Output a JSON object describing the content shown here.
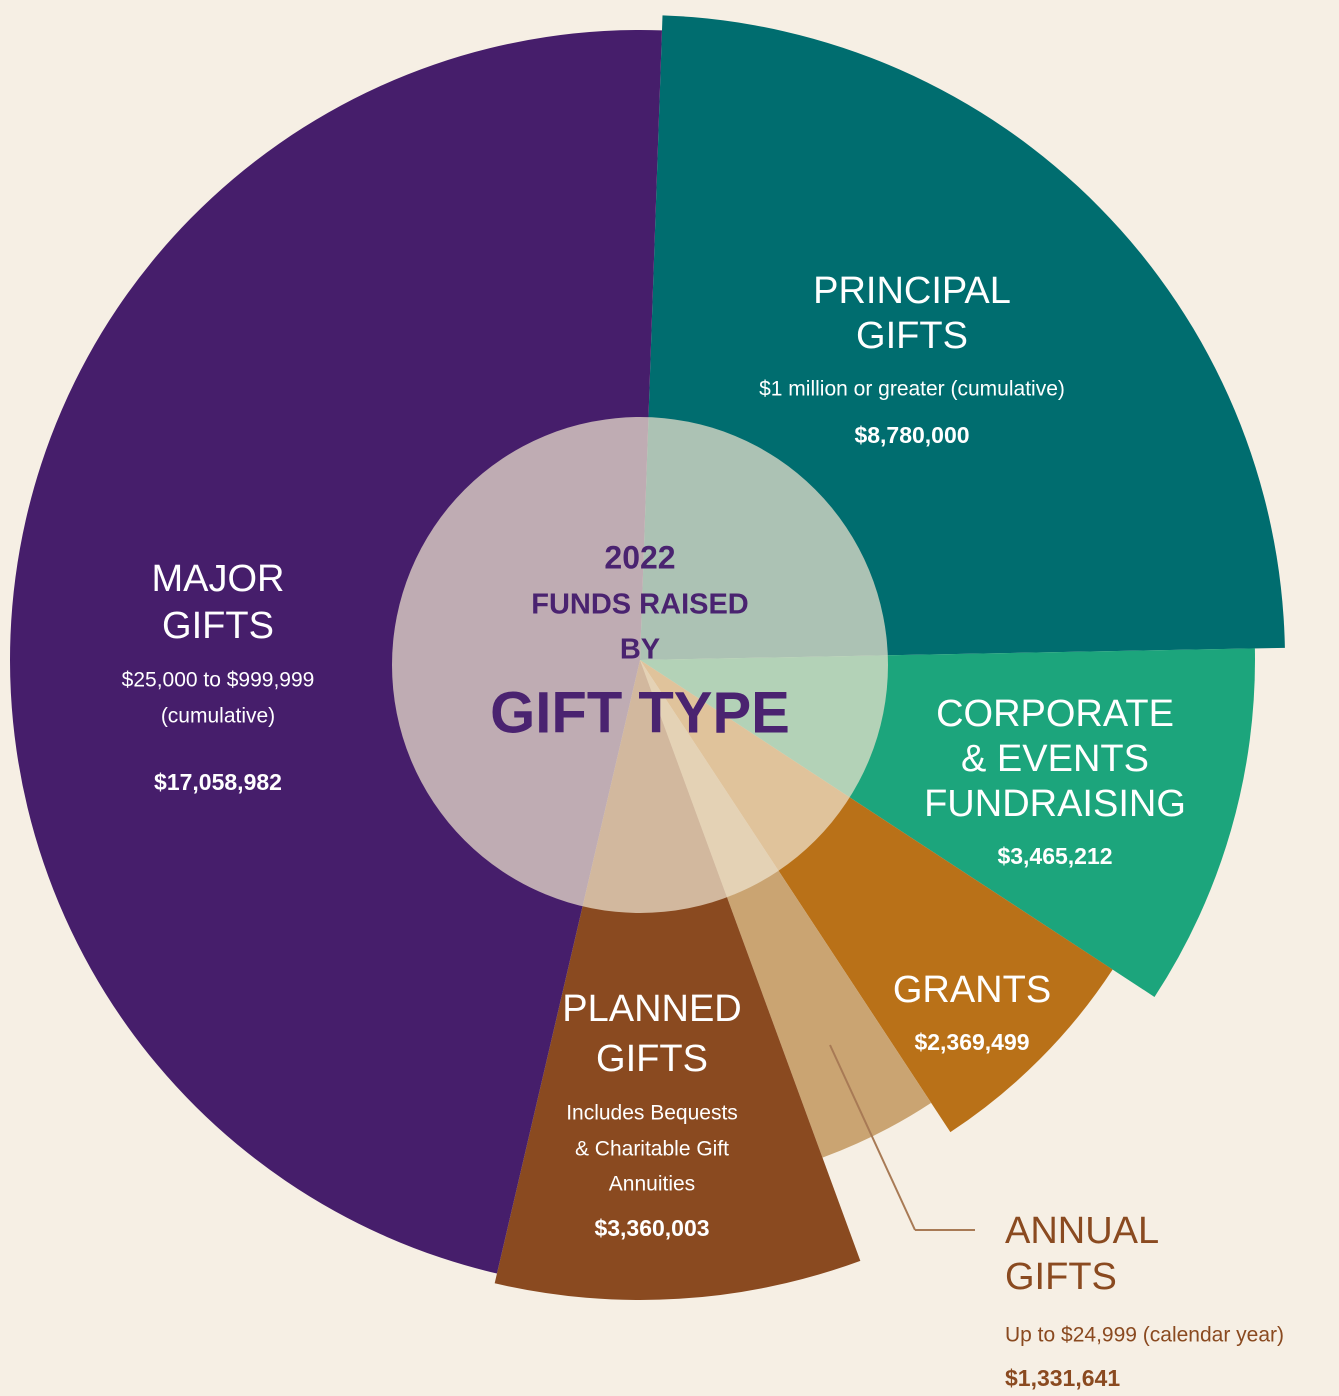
{
  "chart_data": {
    "type": "pie",
    "subtitle": [
      "2022",
      "FUNDS RAISED",
      "BY"
    ],
    "title": "GIFT TYPE",
    "categories": [
      [
        "PRINCIPAL",
        "GIFTS"
      ],
      [
        "CORPORATE",
        "& EVENTS",
        "FUNDRAISING"
      ],
      [
        "GRANTS"
      ],
      [
        "ANNUAL",
        "GIFTS"
      ],
      [
        "PLANNED",
        "GIFTS"
      ],
      [
        "MAJOR",
        "GIFTS"
      ]
    ],
    "notes": [
      [
        "$1 million or greater (cumulative)"
      ],
      null,
      null,
      [
        "Up to $24,999 (calendar year)"
      ],
      [
        "Includes Bequests",
        "& Charitable Gift",
        "Annuities"
      ],
      [
        "$25,000 to $999,999",
        "(cumulative)"
      ]
    ],
    "values": [
      8780000,
      3465212,
      2369499,
      1331641,
      3360003,
      17058982
    ],
    "value_labels": [
      "$8,780,000",
      "$3,465,212",
      "$2,369,499",
      "$1,331,641",
      "$3,360,003",
      "$17,058,982"
    ],
    "colors": [
      "#006d6f",
      "#1ca57c",
      "#b97118",
      "#caa472",
      "#8a4a20",
      "#461e6b"
    ]
  }
}
